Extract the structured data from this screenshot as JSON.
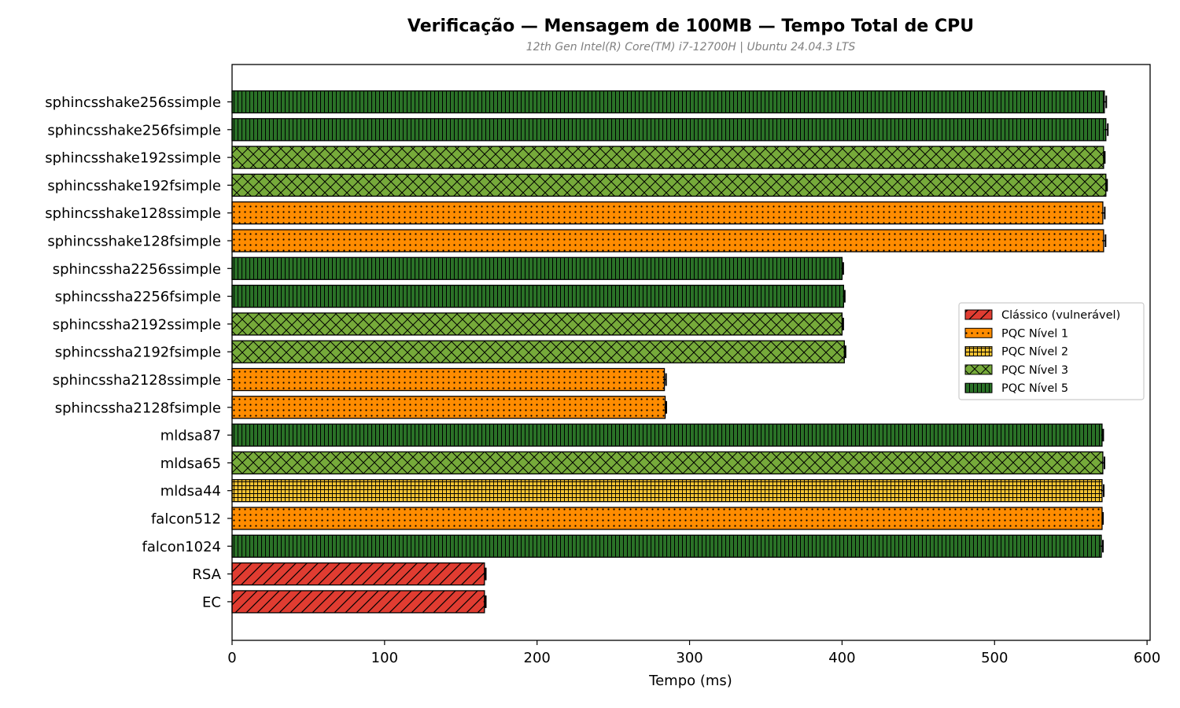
{
  "chart_data": {
    "type": "bar",
    "orientation": "horizontal",
    "title": "Verificação — Mensagem de 100MB — Tempo Total de CPU",
    "subtitle": "12th Gen Intel(R) Core(TM) i7-12700H | Ubuntu 24.04.3 LTS",
    "xlabel": "Tempo (ms)",
    "ylabel": "",
    "xlim": [
      0,
      602
    ],
    "xticks": [
      0,
      100,
      200,
      300,
      400,
      500,
      600
    ],
    "grid": false,
    "legend_position": "center-right",
    "categories_level_colors": {
      "classico": "#e03c31",
      "nivel1": "#ff8c00",
      "nivel2": "#f2c232",
      "nivel3": "#76aa3a",
      "nivel5": "#2a7127"
    },
    "legend": [
      {
        "label": "Clássico (vulnerável)",
        "level": "classico"
      },
      {
        "label": "PQC Nível 1",
        "level": "nivel1"
      },
      {
        "label": "PQC Nível 2",
        "level": "nivel2"
      },
      {
        "label": "PQC Nível 3",
        "level": "nivel3"
      },
      {
        "label": "PQC Nível 5",
        "level": "nivel5"
      }
    ],
    "bars": [
      {
        "label": "sphincsshake256ssimple",
        "value": 572,
        "error": 1.0,
        "level": "nivel5"
      },
      {
        "label": "sphincsshake256fsimple",
        "value": 573,
        "error": 1.0,
        "level": "nivel5"
      },
      {
        "label": "sphincsshake192ssimple",
        "value": 571.5,
        "error": 0.5,
        "level": "nivel3"
      },
      {
        "label": "sphincsshake192fsimple",
        "value": 573,
        "error": 0.5,
        "level": "nivel3"
      },
      {
        "label": "sphincsshake128ssimple",
        "value": 571,
        "error": 1.0,
        "level": "nivel1"
      },
      {
        "label": "sphincsshake128fsimple",
        "value": 571.5,
        "error": 1.0,
        "level": "nivel1"
      },
      {
        "label": "sphincssha2256ssimple",
        "value": 400,
        "error": 0.5,
        "level": "nivel5"
      },
      {
        "label": "sphincssha2256fsimple",
        "value": 401,
        "error": 0.5,
        "level": "nivel5"
      },
      {
        "label": "sphincssha2192ssimple",
        "value": 400,
        "error": 0.5,
        "level": "nivel3"
      },
      {
        "label": "sphincssha2192fsimple",
        "value": 401.5,
        "error": 0.5,
        "level": "nivel3"
      },
      {
        "label": "sphincssha2128ssimple",
        "value": 283.5,
        "error": 0.8,
        "level": "nivel1"
      },
      {
        "label": "sphincssha2128fsimple",
        "value": 284,
        "error": 0.5,
        "level": "nivel1"
      },
      {
        "label": "mldsa87",
        "value": 570.5,
        "error": 0.5,
        "level": "nivel5"
      },
      {
        "label": "mldsa65",
        "value": 571,
        "error": 0.8,
        "level": "nivel3"
      },
      {
        "label": "mldsa44",
        "value": 570.5,
        "error": 0.8,
        "level": "nivel2"
      },
      {
        "label": "falcon512",
        "value": 570.5,
        "error": 0.3,
        "level": "nivel1"
      },
      {
        "label": "falcon1024",
        "value": 570,
        "error": 0.8,
        "level": "nivel5"
      },
      {
        "label": "RSA",
        "value": 165.5,
        "error": 0.6,
        "level": "classico"
      },
      {
        "label": "EC",
        "value": 165.5,
        "error": 0.6,
        "level": "classico"
      }
    ]
  }
}
